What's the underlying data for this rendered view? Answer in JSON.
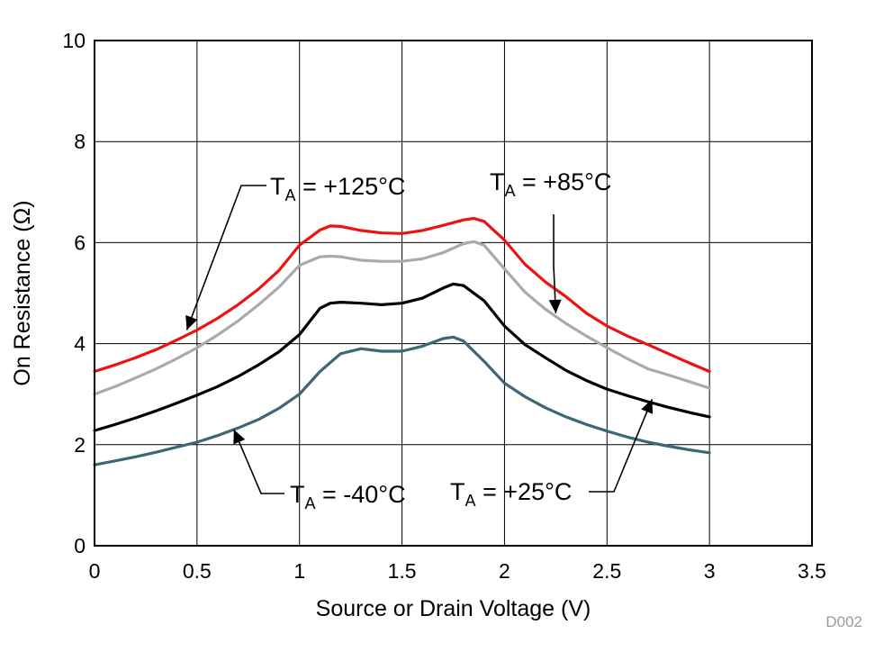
{
  "chart_data": {
    "type": "line",
    "title": "",
    "xlabel": "Source or Drain Voltage (V)",
    "ylabel": "On Resistance (Ω)",
    "xlim": [
      0,
      3.5
    ],
    "ylim": [
      0,
      10
    ],
    "xticks": [
      0,
      0.5,
      1,
      1.5,
      2,
      2.5,
      3,
      3.5
    ],
    "yticks": [
      0,
      2,
      4,
      6,
      8,
      10
    ],
    "xtick_labels": [
      "0",
      "0.5",
      "1",
      "1.5",
      "2",
      "2.5",
      "3",
      "3.5"
    ],
    "ytick_labels": [
      "0",
      "2",
      "4",
      "6",
      "8",
      "10"
    ],
    "grid": true,
    "figure_id": "D002",
    "series": [
      {
        "name": "TA = +125°C",
        "color": "#ee1111",
        "x": [
          0,
          0.1,
          0.2,
          0.3,
          0.4,
          0.5,
          0.6,
          0.7,
          0.8,
          0.9,
          1.0,
          1.1,
          1.15,
          1.2,
          1.3,
          1.4,
          1.5,
          1.6,
          1.7,
          1.8,
          1.85,
          1.9,
          2.0,
          2.1,
          2.2,
          2.3,
          2.4,
          2.5,
          2.6,
          2.7,
          2.8,
          2.9,
          3.0
        ],
        "y": [
          3.45,
          3.58,
          3.72,
          3.88,
          4.07,
          4.27,
          4.5,
          4.77,
          5.08,
          5.45,
          5.95,
          6.25,
          6.33,
          6.32,
          6.24,
          6.19,
          6.18,
          6.24,
          6.34,
          6.45,
          6.48,
          6.42,
          6.05,
          5.57,
          5.22,
          4.93,
          4.6,
          4.35,
          4.15,
          3.98,
          3.8,
          3.62,
          3.45
        ]
      },
      {
        "name": "TA = +85°C",
        "color": "#aaaaaa",
        "x": [
          0,
          0.1,
          0.2,
          0.3,
          0.4,
          0.5,
          0.6,
          0.7,
          0.8,
          0.9,
          1.0,
          1.1,
          1.15,
          1.2,
          1.3,
          1.4,
          1.5,
          1.6,
          1.7,
          1.8,
          1.85,
          1.9,
          2.0,
          2.1,
          2.2,
          2.3,
          2.4,
          2.5,
          2.6,
          2.7,
          2.8,
          2.9,
          3.0
        ],
        "y": [
          3.0,
          3.15,
          3.32,
          3.5,
          3.7,
          3.92,
          4.17,
          4.45,
          4.77,
          5.12,
          5.55,
          5.72,
          5.73,
          5.72,
          5.65,
          5.63,
          5.63,
          5.68,
          5.8,
          5.98,
          6.02,
          5.95,
          5.48,
          5.02,
          4.68,
          4.4,
          4.15,
          3.92,
          3.7,
          3.5,
          3.38,
          3.25,
          3.12
        ]
      },
      {
        "name": "TA = +25°C",
        "color": "#000000",
        "x": [
          0,
          0.1,
          0.2,
          0.3,
          0.4,
          0.5,
          0.6,
          0.7,
          0.8,
          0.9,
          1.0,
          1.1,
          1.15,
          1.2,
          1.3,
          1.4,
          1.5,
          1.6,
          1.7,
          1.75,
          1.8,
          1.9,
          2.0,
          2.1,
          2.2,
          2.3,
          2.4,
          2.5,
          2.6,
          2.7,
          2.8,
          2.9,
          3.0
        ],
        "y": [
          2.28,
          2.4,
          2.53,
          2.67,
          2.82,
          2.98,
          3.15,
          3.35,
          3.58,
          3.84,
          4.18,
          4.7,
          4.8,
          4.82,
          4.8,
          4.77,
          4.8,
          4.9,
          5.1,
          5.18,
          5.15,
          4.85,
          4.35,
          3.98,
          3.72,
          3.47,
          3.27,
          3.1,
          2.97,
          2.85,
          2.74,
          2.64,
          2.55
        ]
      },
      {
        "name": "TA = -40°C",
        "color": "#3d6677",
        "x": [
          0,
          0.1,
          0.2,
          0.3,
          0.4,
          0.5,
          0.6,
          0.7,
          0.8,
          0.9,
          1.0,
          1.1,
          1.2,
          1.3,
          1.4,
          1.5,
          1.6,
          1.7,
          1.75,
          1.8,
          1.9,
          2.0,
          2.1,
          2.2,
          2.3,
          2.4,
          2.5,
          2.6,
          2.7,
          2.8,
          2.9,
          3.0
        ],
        "y": [
          1.6,
          1.68,
          1.76,
          1.85,
          1.95,
          2.05,
          2.18,
          2.33,
          2.5,
          2.72,
          3.0,
          3.45,
          3.8,
          3.9,
          3.85,
          3.85,
          3.95,
          4.1,
          4.13,
          4.05,
          3.65,
          3.22,
          2.95,
          2.73,
          2.55,
          2.4,
          2.27,
          2.15,
          2.05,
          1.97,
          1.9,
          1.84
        ]
      }
    ],
    "annotations": [
      {
        "label": "T",
        "sub": "A",
        "rest": " = +125°C",
        "series": "TA = +125°C",
        "at": [
          0.45,
          4.27
        ]
      },
      {
        "label": "T",
        "sub": "A",
        "rest": " = +85°C",
        "series": "TA = +85°C",
        "at": [
          2.25,
          4.6
        ]
      },
      {
        "label": "T",
        "sub": "A",
        "rest": " = -40°C",
        "series": "TA = -40°C",
        "at": [
          0.68,
          2.3
        ]
      },
      {
        "label": "T",
        "sub": "A",
        "rest": " = +25°C",
        "series": "TA = +25°C",
        "at": [
          2.72,
          2.9
        ]
      }
    ]
  }
}
